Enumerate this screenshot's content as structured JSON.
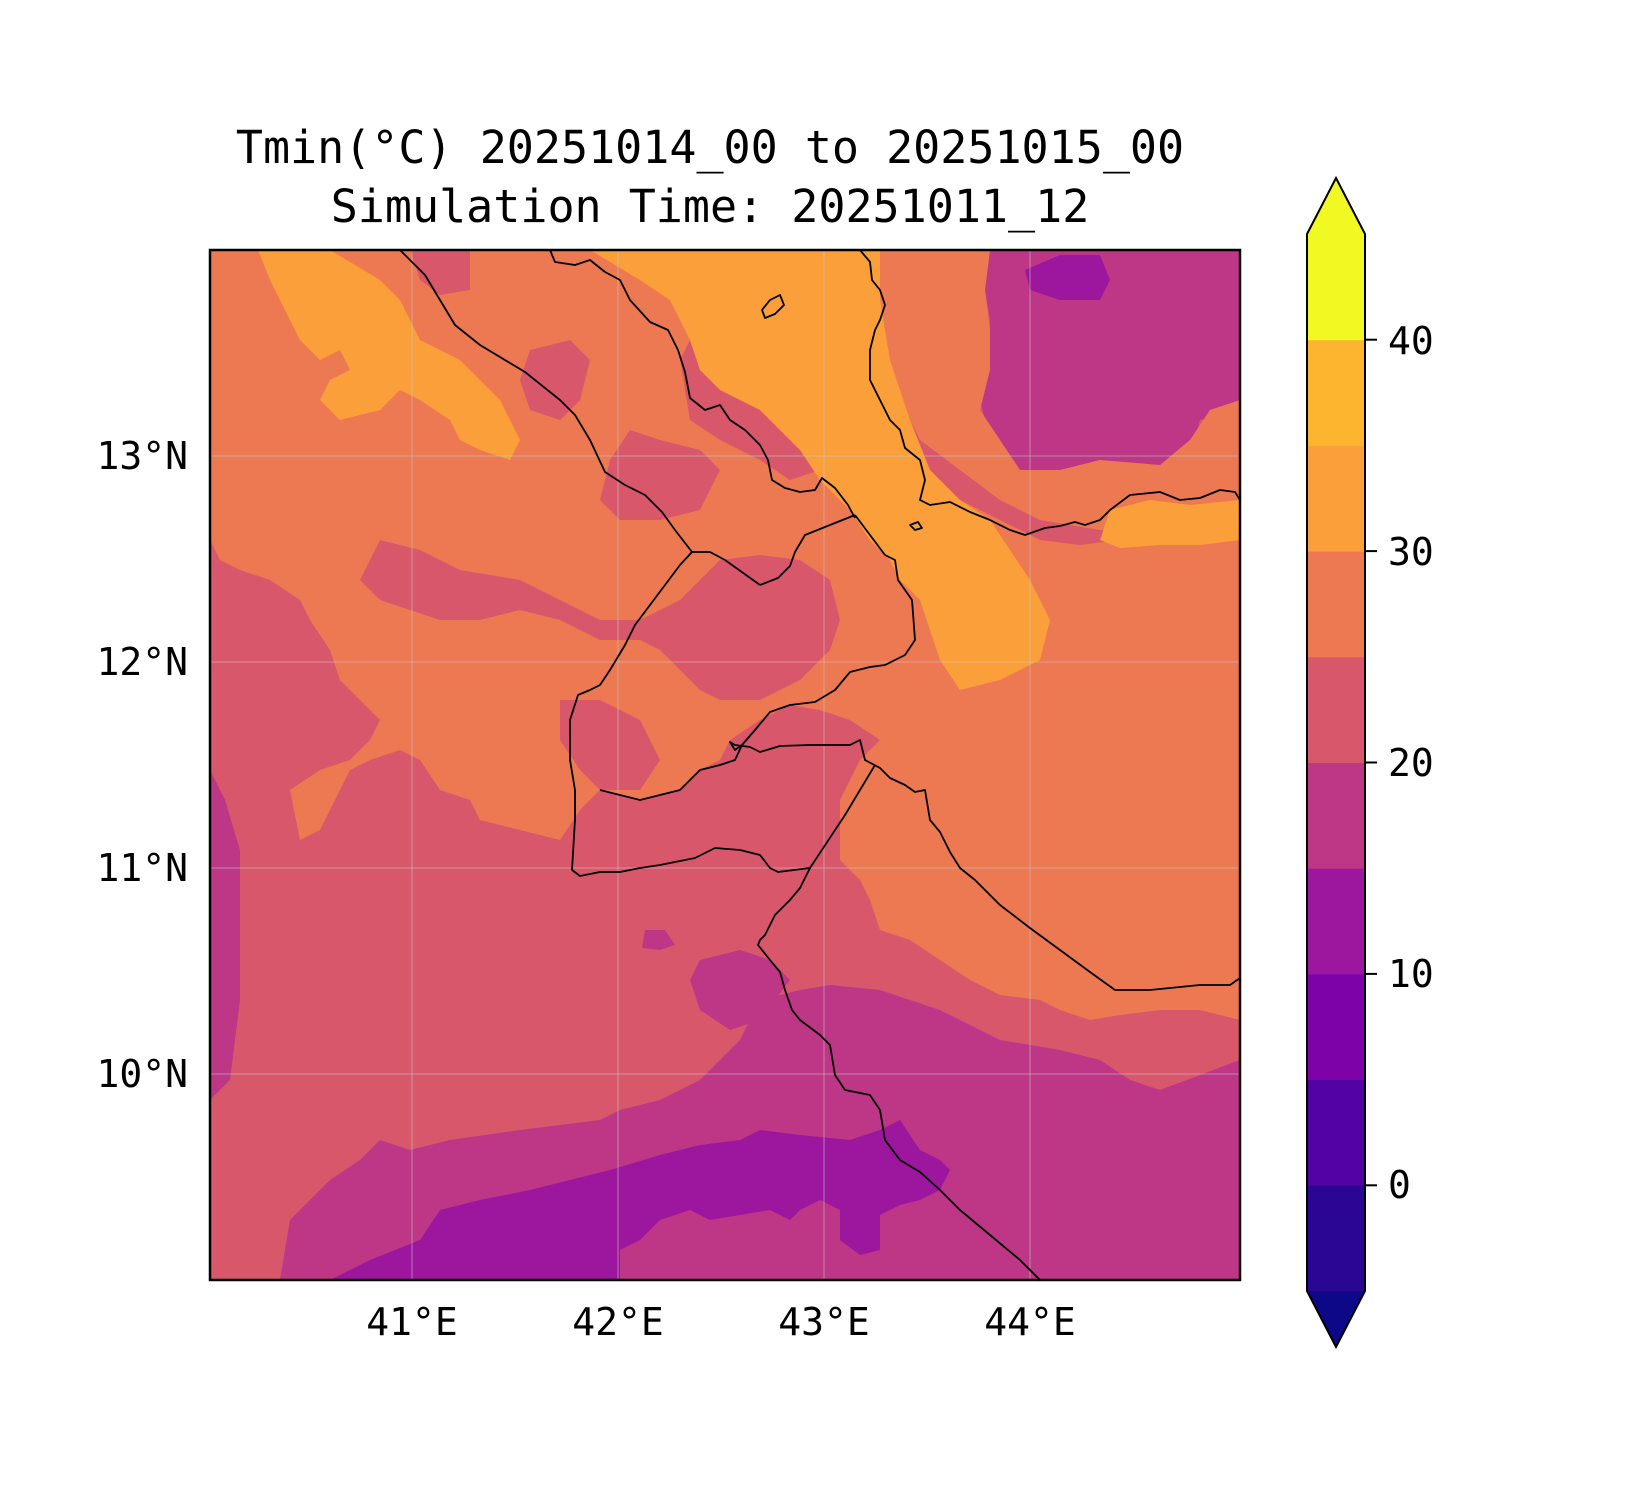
{
  "figure": {
    "title_line1": "Tmin(°C) 20251014_00 to 20251015_00",
    "title_line2": "Simulation Time: 20251011_12"
  },
  "map": {
    "lon_ticks": [
      "41°E",
      "42°E",
      "43°E",
      "44°E"
    ],
    "lat_ticks": [
      "13°N",
      "12°N",
      "11°N",
      "10°N"
    ],
    "lon_range": [
      40.0,
      45.0
    ],
    "lat_range": [
      9.0,
      14.0
    ],
    "gridlines": true,
    "features": [
      "coastlines",
      "country-borders"
    ],
    "fill_levels": [
      {
        "range": "10-15",
        "color": "#9c179e"
      },
      {
        "range": "15-20",
        "color": "#bd3786"
      },
      {
        "range": "20-25",
        "color": "#d8576b"
      },
      {
        "range": "25-30",
        "color": "#ed7953"
      },
      {
        "range": "30-35",
        "color": "#fb9f3a"
      }
    ]
  },
  "colorbar": {
    "tick_labels": [
      "40",
      "30",
      "20",
      "10",
      "0"
    ],
    "levels": [
      -5,
      0,
      5,
      10,
      15,
      20,
      25,
      30,
      35,
      40,
      45
    ],
    "extend": "both",
    "colors": [
      "#0d0887",
      "#2b0594",
      "#5302a3",
      "#7d03a8",
      "#9c179e",
      "#bd3786",
      "#d8576b",
      "#ed7953",
      "#fb9f3a",
      "#fdb42f",
      "#f0f921"
    ],
    "under_color": "#0d0887",
    "over_color": "#f0f921"
  }
}
